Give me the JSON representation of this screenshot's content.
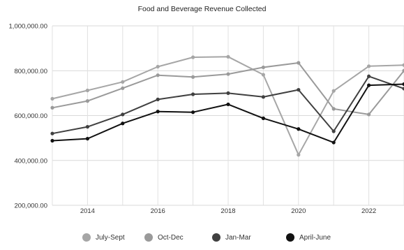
{
  "chart_data": {
    "type": "line",
    "title": "Food and Beverage Revenue Collected",
    "xlabel": "",
    "ylabel": "",
    "x": [
      2013,
      2014,
      2015,
      2016,
      2017,
      2018,
      2019,
      2020,
      2021,
      2022,
      2023
    ],
    "xlim": [
      2013,
      2023
    ],
    "ylim": [
      200000,
      1000000
    ],
    "yticks": [
      200000,
      400000,
      600000,
      800000,
      1000000
    ],
    "ytick_labels": [
      "200,000.00",
      "400,000.00",
      "600,000.00",
      "800,000.00",
      "1,000,000.00"
    ],
    "xticks": [
      2014,
      2016,
      2018,
      2020,
      2022
    ],
    "xtick_labels": [
      "2014",
      "2016",
      "2018",
      "2020",
      "2022"
    ],
    "grid": true,
    "legend_position": "bottom",
    "series": [
      {
        "name": "July-Sept",
        "color": "#a6a6a6",
        "values": [
          675000,
          712000,
          750000,
          818000,
          860000,
          862000,
          782000,
          425000,
          710000,
          820000,
          825000
        ]
      },
      {
        "name": "Oct-Dec",
        "color": "#9a9a9a",
        "values": [
          635000,
          665000,
          722000,
          780000,
          772000,
          785000,
          815000,
          835000,
          630000,
          605000,
          800000
        ]
      },
      {
        "name": "Jan-Mar",
        "color": "#404040",
        "values": [
          520000,
          550000,
          605000,
          672000,
          695000,
          700000,
          683000,
          715000,
          530000,
          775000,
          720000
        ]
      },
      {
        "name": "April-June",
        "color": "#111111",
        "values": [
          488000,
          497000,
          565000,
          618000,
          615000,
          650000,
          588000,
          540000,
          480000,
          735000,
          740000
        ]
      }
    ]
  }
}
